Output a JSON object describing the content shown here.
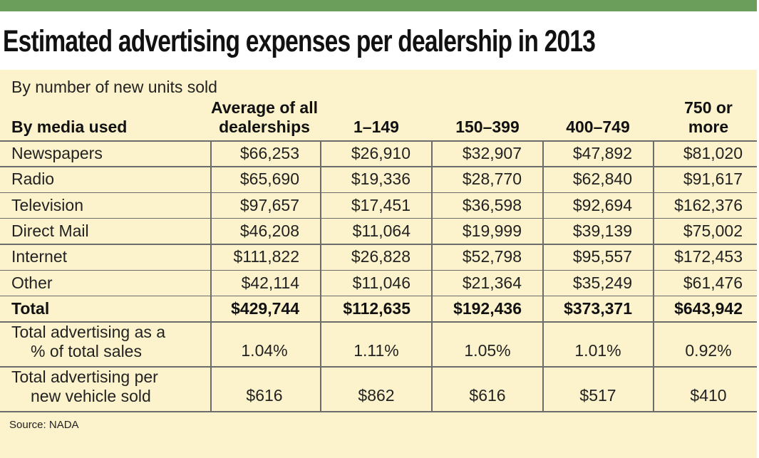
{
  "chart_data": {
    "type": "table",
    "title": "Estimated advertising expenses per dealership in 2013",
    "subtitle": "By number of new units sold",
    "row_header": "By media used",
    "columns": [
      "Average of all dealerships",
      "1–149",
      "150–399",
      "400–749",
      "750 or more"
    ],
    "column_header_lines": [
      [
        "Average of all",
        "dealerships"
      ],
      [
        "1–149"
      ],
      [
        "150–399"
      ],
      [
        "400–749"
      ],
      [
        "750 or",
        "more"
      ]
    ],
    "rows": [
      {
        "label": "Newspapers",
        "values": [
          "$66,253",
          "$26,910",
          "$32,907",
          "$47,892",
          "$81,020"
        ]
      },
      {
        "label": "Radio",
        "values": [
          "$65,690",
          "$19,336",
          "$28,770",
          "$62,840",
          "$91,617"
        ]
      },
      {
        "label": "Television",
        "values": [
          "$97,657",
          "$17,451",
          "$36,598",
          "$92,694",
          "$162,376"
        ]
      },
      {
        "label": "Direct Mail",
        "values": [
          "$46,208",
          "$11,064",
          "$19,999",
          "$39,139",
          "$75,002"
        ]
      },
      {
        "label": "Internet",
        "values": [
          "$111,822",
          "$26,828",
          "$52,798",
          "$95,557",
          "$172,453"
        ]
      },
      {
        "label": "Other",
        "values": [
          "$42,114",
          "$11,046",
          "$21,364",
          "$35,249",
          "$61,476"
        ]
      }
    ],
    "total": {
      "label": "Total",
      "values": [
        "$429,744",
        "$112,635",
        "$192,436",
        "$373,371",
        "$643,942"
      ]
    },
    "pct_sales": {
      "label_lines": [
        "Total advertising as a",
        "% of total sales"
      ],
      "values": [
        "1.04%",
        "1.11%",
        "1.05%",
        "1.01%",
        "0.92%"
      ]
    },
    "per_vehicle": {
      "label_lines": [
        "Total advertising per",
        "new vehicle sold"
      ],
      "values": [
        "$616",
        "$862",
        "$616",
        "$517",
        "$410"
      ]
    },
    "source": "Source: NADA"
  },
  "colors": {
    "top_bar": "#6b9e5a",
    "panel_background": "#fcf3cc",
    "rule": "#6c6c6c"
  }
}
